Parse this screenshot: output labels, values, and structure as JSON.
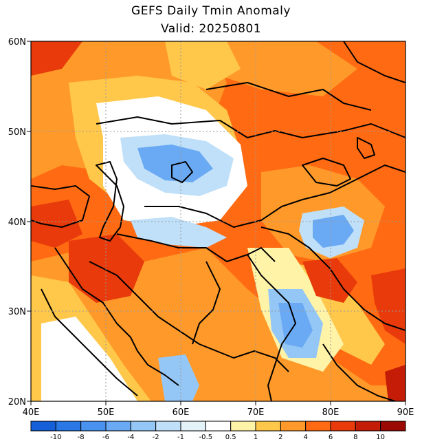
{
  "title": "GEFS Daily Tmin Anomaly",
  "subtitle": "Valid: 20250801",
  "map": {
    "lat_labels": [
      "60N",
      "50N",
      "40N",
      "30N",
      "20N"
    ],
    "lon_labels": [
      "40E",
      "50E",
      "60E",
      "70E",
      "80E",
      "90E"
    ],
    "lon_range": [
      40,
      90
    ],
    "lat_range": [
      20,
      60
    ],
    "gridlines": "dotted"
  },
  "colorbar": {
    "labels": [
      "-10",
      "-8",
      "-6",
      "-4",
      "-2",
      "-1",
      "-0.5",
      "0.5",
      "1",
      "2",
      "4",
      "6",
      "8",
      "10"
    ],
    "colors": [
      "#1560d8",
      "#2a78e6",
      "#4a92ef",
      "#6aa9f3",
      "#95c7f6",
      "#bfe0f8",
      "#e4f3f8",
      "#ffffff",
      "#fff3a8",
      "#ffc84a",
      "#ff9a2a",
      "#ff6a12",
      "#e83a0a",
      "#c41c06",
      "#9a0a02"
    ]
  },
  "colors": {
    "warm": "#ff6a12",
    "mild_warm": "#ff9a2a",
    "light_warm": "#ffc84a",
    "yellow": "#fff3a8",
    "neutral": "#ffffff",
    "light_cool": "#bfe0f8",
    "cool": "#6aa9f3",
    "dark_warm": "#e83a0a"
  }
}
